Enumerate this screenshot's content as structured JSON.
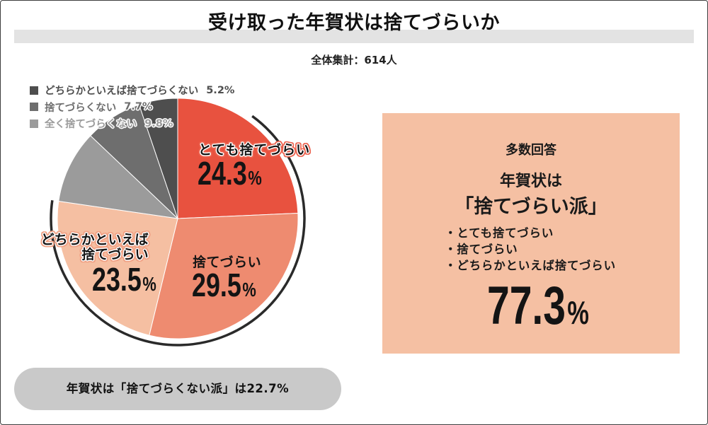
{
  "chart_data": {
    "type": "pie",
    "title": "受け取った年賀状は捨てづらいか",
    "subtitle": "全体集計：614人",
    "unit": "%",
    "legend_placement": "top-left",
    "slices": [
      {
        "label": "とても捨てづらい",
        "value": 24.3,
        "color": "#E8523F"
      },
      {
        "label": "捨てづらい",
        "value": 29.5,
        "color": "#EE8B70"
      },
      {
        "label": "どちらかといえば捨てづらい",
        "value": 23.5,
        "color": "#F5BFA2"
      },
      {
        "label": "全く捨てづらくない",
        "value": 9.8,
        "color": "#9B9B9B"
      },
      {
        "label": "捨てづらくない",
        "value": 7.7,
        "color": "#6E6E6E"
      },
      {
        "label": "どちらかといえば捨てづらくない",
        "value": 5.2,
        "color": "#4E4E4E"
      }
    ]
  },
  "summary": {
    "heading": "多数回答",
    "line1": "年賀状は",
    "line2": "「捨てづらい派」",
    "items": [
      "・とても捨てづらい",
      "・捨てづらい",
      "・どちらかといえば捨てづらい"
    ],
    "value": "77.3"
  },
  "footer_note": "年賀状は「捨てづらくない派」は22.7%"
}
